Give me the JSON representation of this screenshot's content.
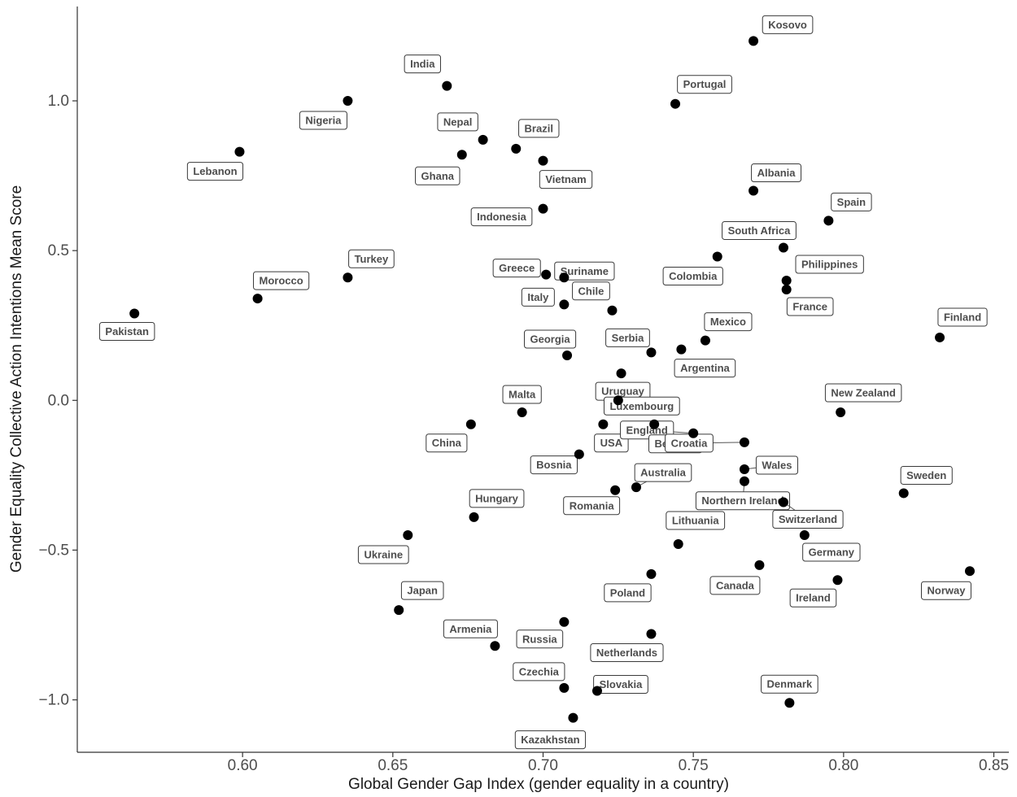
{
  "chart_data": {
    "type": "scatter",
    "xlabel": "Global Gender Gap Index (gender equality in a country)",
    "ylabel": "Gender Equality Collective Action Intentions Mean Score",
    "xlim": [
      0.545,
      0.855
    ],
    "ylim": [
      -1.175,
      1.315
    ],
    "xticks": [
      0.6,
      0.65,
      0.7,
      0.75,
      0.8,
      0.85
    ],
    "xtick_labels": [
      "0.60",
      "0.65",
      "0.70",
      "0.75",
      "0.80",
      "0.85"
    ],
    "yticks": [
      1.0,
      0.5,
      0.0,
      -0.5,
      -1.0
    ],
    "ytick_labels": [
      "1.0",
      "0.5",
      "0.0",
      "−0.5",
      "−1.0"
    ],
    "grid": false,
    "points": [
      {
        "label": "Kosovo",
        "x": 0.77,
        "y": 1.2
      },
      {
        "label": "India",
        "x": 0.668,
        "y": 1.05
      },
      {
        "label": "Portugal",
        "x": 0.744,
        "y": 0.99
      },
      {
        "label": "Nigeria",
        "x": 0.635,
        "y": 1.0
      },
      {
        "label": "Nepal",
        "x": 0.68,
        "y": 0.87
      },
      {
        "label": "Brazil",
        "x": 0.691,
        "y": 0.84
      },
      {
        "label": "Lebanon",
        "x": 0.599,
        "y": 0.83
      },
      {
        "label": "Ghana",
        "x": 0.673,
        "y": 0.82
      },
      {
        "label": "Vietnam",
        "x": 0.7,
        "y": 0.8
      },
      {
        "label": "Albania",
        "x": 0.77,
        "y": 0.7
      },
      {
        "label": "Indonesia",
        "x": 0.7,
        "y": 0.64
      },
      {
        "label": "Spain",
        "x": 0.795,
        "y": 0.6
      },
      {
        "label": "South Africa",
        "x": 0.78,
        "y": 0.51
      },
      {
        "label": "Colombia",
        "x": 0.758,
        "y": 0.48
      },
      {
        "label": "Philippines",
        "x": 0.781,
        "y": 0.4
      },
      {
        "label": "Greece",
        "x": 0.701,
        "y": 0.42
      },
      {
        "label": "Suriname",
        "x": 0.707,
        "y": 0.41
      },
      {
        "label": "Turkey",
        "x": 0.635,
        "y": 0.41
      },
      {
        "label": "France",
        "x": 0.781,
        "y": 0.37
      },
      {
        "label": "Morocco",
        "x": 0.605,
        "y": 0.34
      },
      {
        "label": "Italy",
        "x": 0.707,
        "y": 0.32
      },
      {
        "label": "Chile",
        "x": 0.723,
        "y": 0.3
      },
      {
        "label": "Pakistan",
        "x": 0.564,
        "y": 0.29
      },
      {
        "label": "Finland",
        "x": 0.832,
        "y": 0.21
      },
      {
        "label": "Mexico",
        "x": 0.754,
        "y": 0.2
      },
      {
        "label": "Argentina",
        "x": 0.746,
        "y": 0.17
      },
      {
        "label": "Serbia",
        "x": 0.736,
        "y": 0.16
      },
      {
        "label": "Georgia",
        "x": 0.708,
        "y": 0.15
      },
      {
        "label": "Uruguay",
        "x": 0.726,
        "y": 0.09
      },
      {
        "label": "Malta",
        "x": 0.693,
        "y": -0.04
      },
      {
        "label": "New Zealand",
        "x": 0.799,
        "y": -0.04
      },
      {
        "label": "Luxembourg",
        "x": 0.725,
        "y": 0.0
      },
      {
        "label": "USA",
        "x": 0.72,
        "y": -0.08
      },
      {
        "label": "China",
        "x": 0.676,
        "y": -0.08
      },
      {
        "label": "England",
        "x": 0.75,
        "y": -0.11
      },
      {
        "label": "Belgium",
        "x": 0.737,
        "y": -0.08
      },
      {
        "label": "Croatia",
        "x": 0.767,
        "y": -0.14
      },
      {
        "label": "Bosnia",
        "x": 0.712,
        "y": -0.18
      },
      {
        "label": "Wales",
        "x": 0.767,
        "y": -0.23
      },
      {
        "label": "Northern Ireland",
        "x": 0.767,
        "y": -0.27
      },
      {
        "label": "Australia",
        "x": 0.731,
        "y": -0.29
      },
      {
        "label": "Romania",
        "x": 0.724,
        "y": -0.3
      },
      {
        "label": "Sweden",
        "x": 0.82,
        "y": -0.31
      },
      {
        "label": "Switzerland",
        "x": 0.78,
        "y": -0.34
      },
      {
        "label": "Hungary",
        "x": 0.677,
        "y": -0.39
      },
      {
        "label": "Ukraine",
        "x": 0.655,
        "y": -0.45
      },
      {
        "label": "Germany",
        "x": 0.787,
        "y": -0.45
      },
      {
        "label": "Lithuania",
        "x": 0.745,
        "y": -0.48
      },
      {
        "label": "Canada",
        "x": 0.772,
        "y": -0.55
      },
      {
        "label": "Norway",
        "x": 0.842,
        "y": -0.57
      },
      {
        "label": "Poland",
        "x": 0.736,
        "y": -0.58
      },
      {
        "label": "Ireland",
        "x": 0.798,
        "y": -0.6
      },
      {
        "label": "Japan",
        "x": 0.652,
        "y": -0.7
      },
      {
        "label": "Armenia",
        "x": 0.684,
        "y": -0.82
      },
      {
        "label": "Russia",
        "x": 0.707,
        "y": -0.74
      },
      {
        "label": "Netherlands",
        "x": 0.736,
        "y": -0.78
      },
      {
        "label": "Czechia",
        "x": 0.707,
        "y": -0.96
      },
      {
        "label": "Slovakia",
        "x": 0.718,
        "y": -0.97
      },
      {
        "label": "Denmark",
        "x": 0.782,
        "y": -1.01
      },
      {
        "label": "Kazakhstan",
        "x": 0.71,
        "y": -1.06
      }
    ]
  }
}
